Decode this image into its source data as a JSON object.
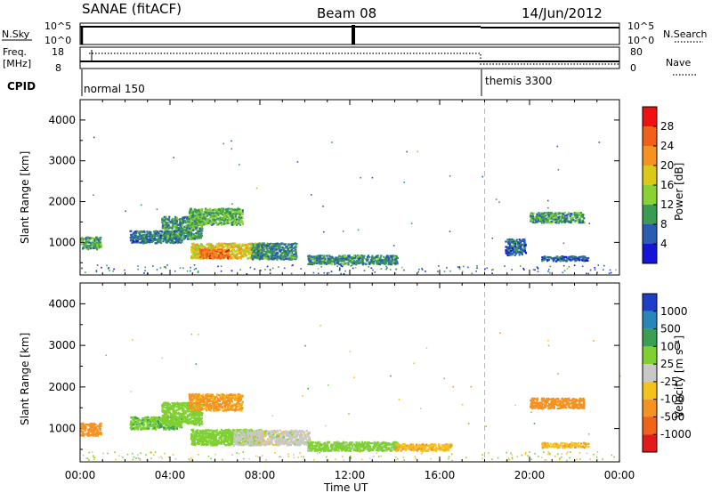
{
  "header": {
    "radar": "SANAE (fitACF)",
    "beam": "Beam 08",
    "date": "14/Jun/2012"
  },
  "strip_labels": {
    "nsky": "N.Sky",
    "nsearch": "N.Search",
    "freq_top": "Freq.",
    "freq_unit": "[MHz]",
    "nave": "Nave",
    "cpid": "CPID",
    "nsky_ticks": [
      "10^5",
      "10^0"
    ],
    "nsearch_ticks": [
      "10^5",
      "10^0"
    ],
    "freq_ticks": [
      "18",
      "8"
    ],
    "nave_ticks": [
      "80",
      "0"
    ]
  },
  "cpid_segments": [
    {
      "label": "normal 150",
      "start_hour": 0
    },
    {
      "label": "themis 3300",
      "start_hour": 18
    }
  ],
  "colorbars": {
    "power": {
      "label": "Power [dB]",
      "ticks": [
        "28",
        "24",
        "20",
        "16",
        "12",
        "8",
        "4"
      ],
      "colors": [
        "#ee1111",
        "#f06018",
        "#f49222",
        "#dcc818",
        "#8ad233",
        "#3b9a53",
        "#2a5cb0",
        "#1515d8"
      ]
    },
    "velocity": {
      "label": "Velocity [m s⁻¹]",
      "ticks": [
        "1000",
        "500",
        "100",
        "25",
        "-25",
        "-100",
        "-500",
        "-1000"
      ],
      "colors": [
        "#1d3fc8",
        "#2a86b8",
        "#3a9e55",
        "#7fd032",
        "#c8c8c8",
        "#f4c21a",
        "#f49222",
        "#ef6418",
        "#e31a1c"
      ]
    }
  },
  "chart_data": [
    {
      "type": "heatmap",
      "title": "",
      "xlabel": "Time UT",
      "ylabel": "Slant Range [km]",
      "colorbar_label": "Power [dB]",
      "x_ticks": [
        "00:00",
        "04:00",
        "08:00",
        "12:00",
        "16:00",
        "20:00",
        "00:00"
      ],
      "xlim_hours": [
        0,
        24
      ],
      "ylim": [
        200,
        4500
      ],
      "y_ticks": [
        1000,
        2000,
        3000,
        4000
      ],
      "clim": [
        0,
        30
      ],
      "clusters": [
        {
          "t0": 0.0,
          "t1": 0.9,
          "r0": 850,
          "r1": 1150,
          "value": 10
        },
        {
          "t0": 2.2,
          "t1": 4.5,
          "r0": 1000,
          "r1": 1300,
          "value": 7
        },
        {
          "t0": 3.6,
          "t1": 5.4,
          "r0": 1100,
          "r1": 1650,
          "value": 9
        },
        {
          "t0": 4.8,
          "t1": 7.2,
          "r0": 1450,
          "r1": 1850,
          "value": 11
        },
        {
          "t0": 4.9,
          "t1": 8.1,
          "r0": 620,
          "r1": 1000,
          "value": 17
        },
        {
          "t0": 5.3,
          "t1": 6.6,
          "r0": 620,
          "r1": 850,
          "value": 24
        },
        {
          "t0": 7.6,
          "t1": 9.6,
          "r0": 600,
          "r1": 1000,
          "value": 8
        },
        {
          "t0": 10.1,
          "t1": 14.1,
          "r0": 480,
          "r1": 700,
          "value": 8
        },
        {
          "t0": 18.9,
          "t1": 19.8,
          "r0": 700,
          "r1": 1100,
          "value": 6
        },
        {
          "t0": 20.0,
          "t1": 22.4,
          "r0": 1500,
          "r1": 1750,
          "value": 9
        },
        {
          "t0": 20.5,
          "t1": 22.6,
          "r0": 560,
          "r1": 680,
          "value": 6
        }
      ]
    },
    {
      "type": "heatmap",
      "title": "",
      "xlabel": "Time UT",
      "ylabel": "Slant Range [km]",
      "colorbar_label": "Velocity [m s⁻¹]",
      "x_ticks": [
        "00:00",
        "04:00",
        "08:00",
        "12:00",
        "16:00",
        "20:00",
        "00:00"
      ],
      "xlim_hours": [
        0,
        24
      ],
      "ylim": [
        200,
        4500
      ],
      "y_ticks": [
        1000,
        2000,
        3000,
        4000
      ],
      "clim": [
        -1000,
        1000
      ],
      "clusters": [
        {
          "t0": 0.0,
          "t1": 0.9,
          "r0": 850,
          "r1": 1150,
          "value": -300
        },
        {
          "t0": 2.2,
          "t1": 4.5,
          "r0": 1000,
          "r1": 1300,
          "value": 80
        },
        {
          "t0": 3.6,
          "t1": 5.4,
          "r0": 1100,
          "r1": 1650,
          "value": 60
        },
        {
          "t0": 4.8,
          "t1": 7.2,
          "r0": 1450,
          "r1": 1850,
          "value": -150
        },
        {
          "t0": 4.9,
          "t1": 8.1,
          "r0": 620,
          "r1": 1000,
          "value": 60
        },
        {
          "t0": 6.8,
          "t1": 10.2,
          "r0": 620,
          "r1": 980,
          "value": 0
        },
        {
          "t0": 10.1,
          "t1": 14.1,
          "r0": 480,
          "r1": 700,
          "value": 50
        },
        {
          "t0": 14.0,
          "t1": 16.5,
          "r0": 480,
          "r1": 650,
          "value": -80
        },
        {
          "t0": 20.0,
          "t1": 22.4,
          "r0": 1500,
          "r1": 1750,
          "value": -300
        },
        {
          "t0": 20.5,
          "t1": 22.6,
          "r0": 560,
          "r1": 680,
          "value": -80
        }
      ]
    }
  ]
}
